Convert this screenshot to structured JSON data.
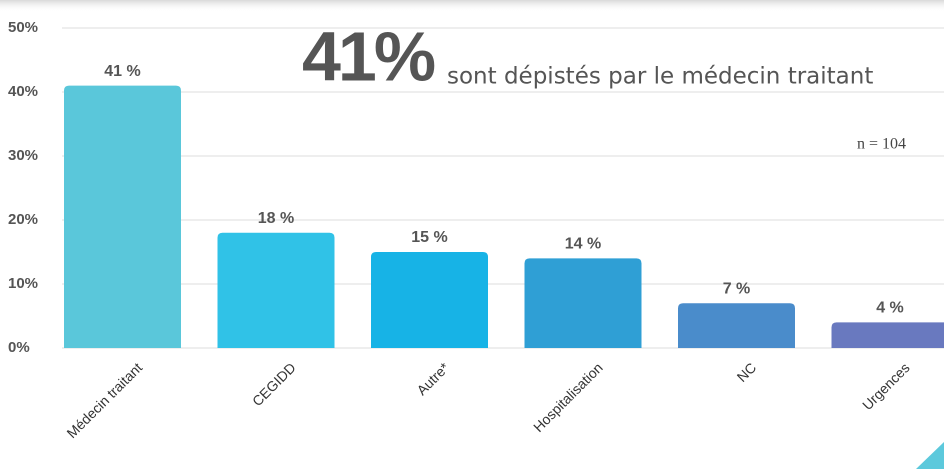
{
  "chart_data": {
    "type": "bar",
    "annotations": {
      "headline": "41%",
      "headline_text": "sont dépistés par le médecin traitant",
      "sample": "n = 104"
    },
    "categories": [
      "Médecin traitant",
      "CEGIDD",
      "Autre*",
      "Hospitalisation",
      "NC",
      "Urgences"
    ],
    "values": [
      41,
      18,
      15,
      14,
      7,
      4
    ],
    "value_labels": [
      "41 %",
      "18 %",
      "15 %",
      "14 %",
      "7 %",
      "4 %"
    ],
    "colors": [
      "#5ac7da",
      "#30c2e7",
      "#17b3e6",
      "#2f9fd5",
      "#4a8ccb",
      "#6979bf"
    ],
    "ylim": [
      0,
      50
    ],
    "yticks": [
      {
        "value": 0,
        "label": "0%"
      },
      {
        "value": 10,
        "label": "10%"
      },
      {
        "value": 20,
        "label": "20%"
      },
      {
        "value": 30,
        "label": "30%"
      },
      {
        "value": 40,
        "label": "40%"
      },
      {
        "value": 50,
        "label": "50%"
      }
    ],
    "grid": true
  }
}
